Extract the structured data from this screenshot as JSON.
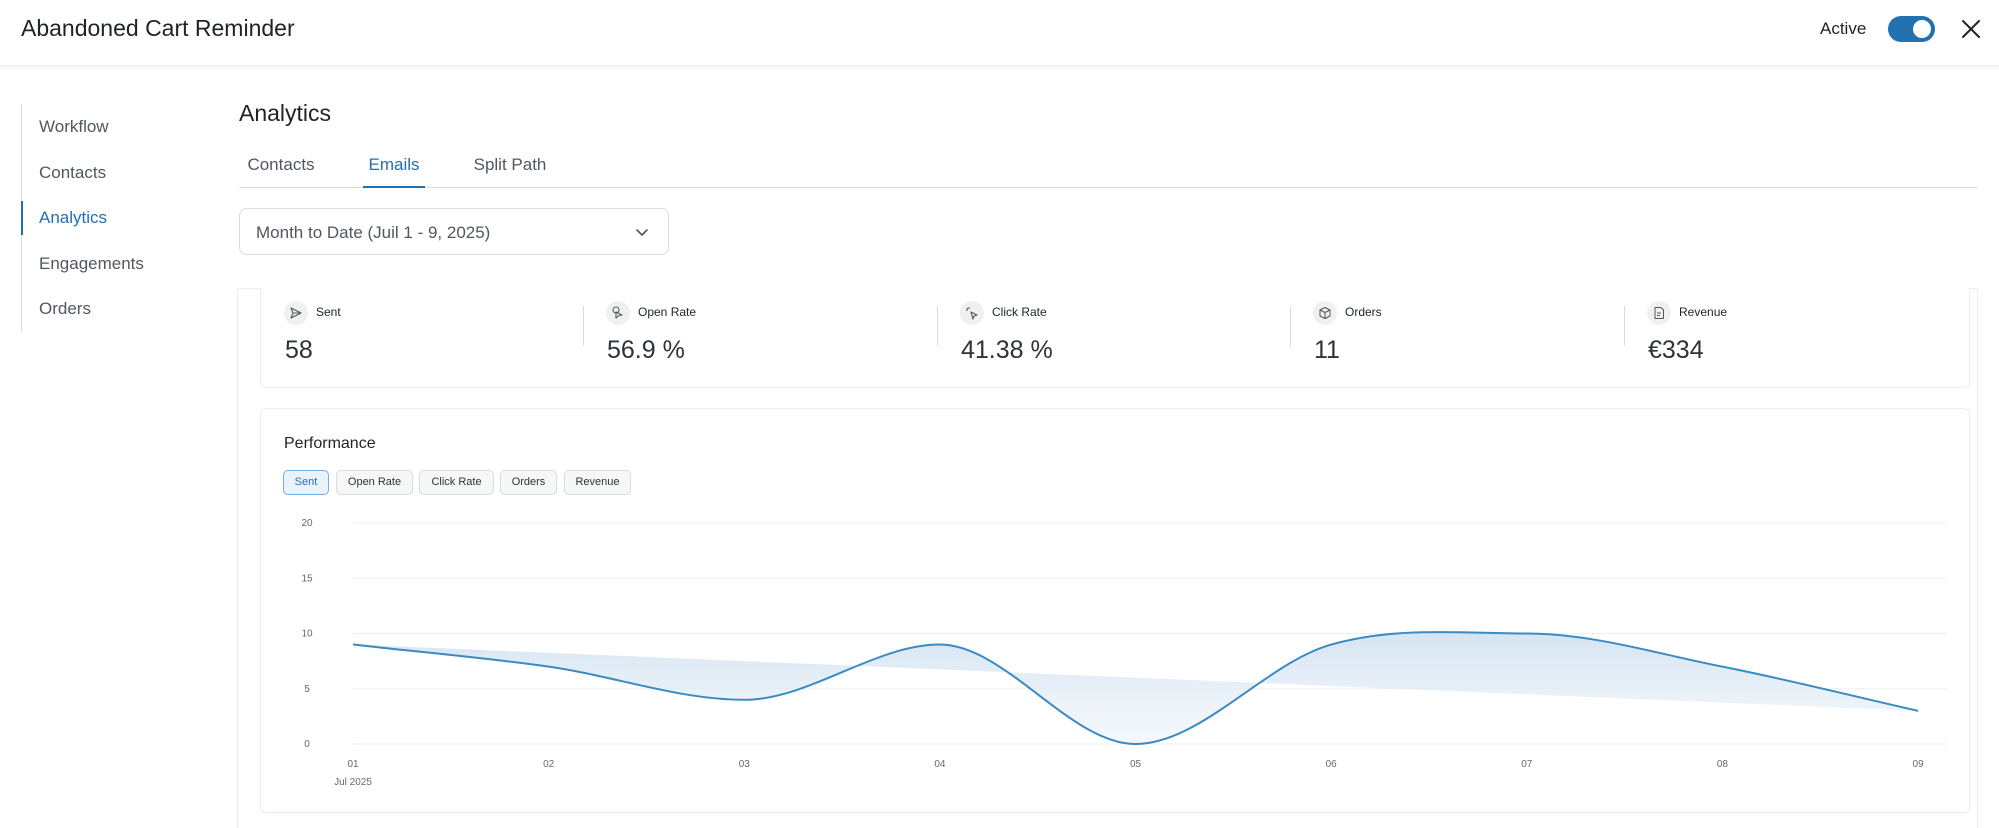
{
  "header": {
    "title": "Abandoned Cart Reminder",
    "status_label": "Active",
    "toggle_on": true
  },
  "sidebar": {
    "items": [
      {
        "label": "Workflow",
        "active": false
      },
      {
        "label": "Contacts",
        "active": false
      },
      {
        "label": "Analytics",
        "active": true
      },
      {
        "label": "Engagements",
        "active": false
      },
      {
        "label": "Orders",
        "active": false
      }
    ]
  },
  "page": {
    "title": "Analytics",
    "tabs": [
      {
        "label": "Contacts",
        "active": false
      },
      {
        "label": "Emails",
        "active": true
      },
      {
        "label": "Split Path",
        "active": false
      }
    ],
    "date_range": "Month to Date (Juil 1 - 9, 2025)"
  },
  "stats": [
    {
      "label": "Sent",
      "value": "58",
      "icon": "send-icon"
    },
    {
      "label": "Open Rate",
      "value": "56.9 %",
      "icon": "open-rate-icon"
    },
    {
      "label": "Click Rate",
      "value": "41.38 %",
      "icon": "click-icon"
    },
    {
      "label": "Orders",
      "value": "11",
      "icon": "box-icon"
    },
    {
      "label": "Revenue",
      "value": "€334",
      "icon": "revenue-icon"
    }
  ],
  "performance": {
    "title": "Performance",
    "metrics": [
      {
        "label": "Sent",
        "active": true
      },
      {
        "label": "Open Rate",
        "active": false
      },
      {
        "label": "Click Rate",
        "active": false
      },
      {
        "label": "Orders",
        "active": false
      },
      {
        "label": "Revenue",
        "active": false
      }
    ]
  },
  "colors": {
    "accent": "#2271b1",
    "line": "#3a8bc2",
    "area": "#dbe8f3"
  },
  "chart_data": {
    "type": "area",
    "x": [
      "01",
      "02",
      "03",
      "04",
      "05",
      "06",
      "07",
      "08",
      "09"
    ],
    "x_sublabel": "Jul 2025",
    "series": [
      {
        "values": [
          9,
          7,
          4,
          9,
          0,
          9,
          10,
          7,
          3
        ]
      }
    ],
    "yticks": [
      0,
      5,
      10,
      15,
      20
    ],
    "ylim": [
      0,
      20
    ],
    "grid": true
  }
}
